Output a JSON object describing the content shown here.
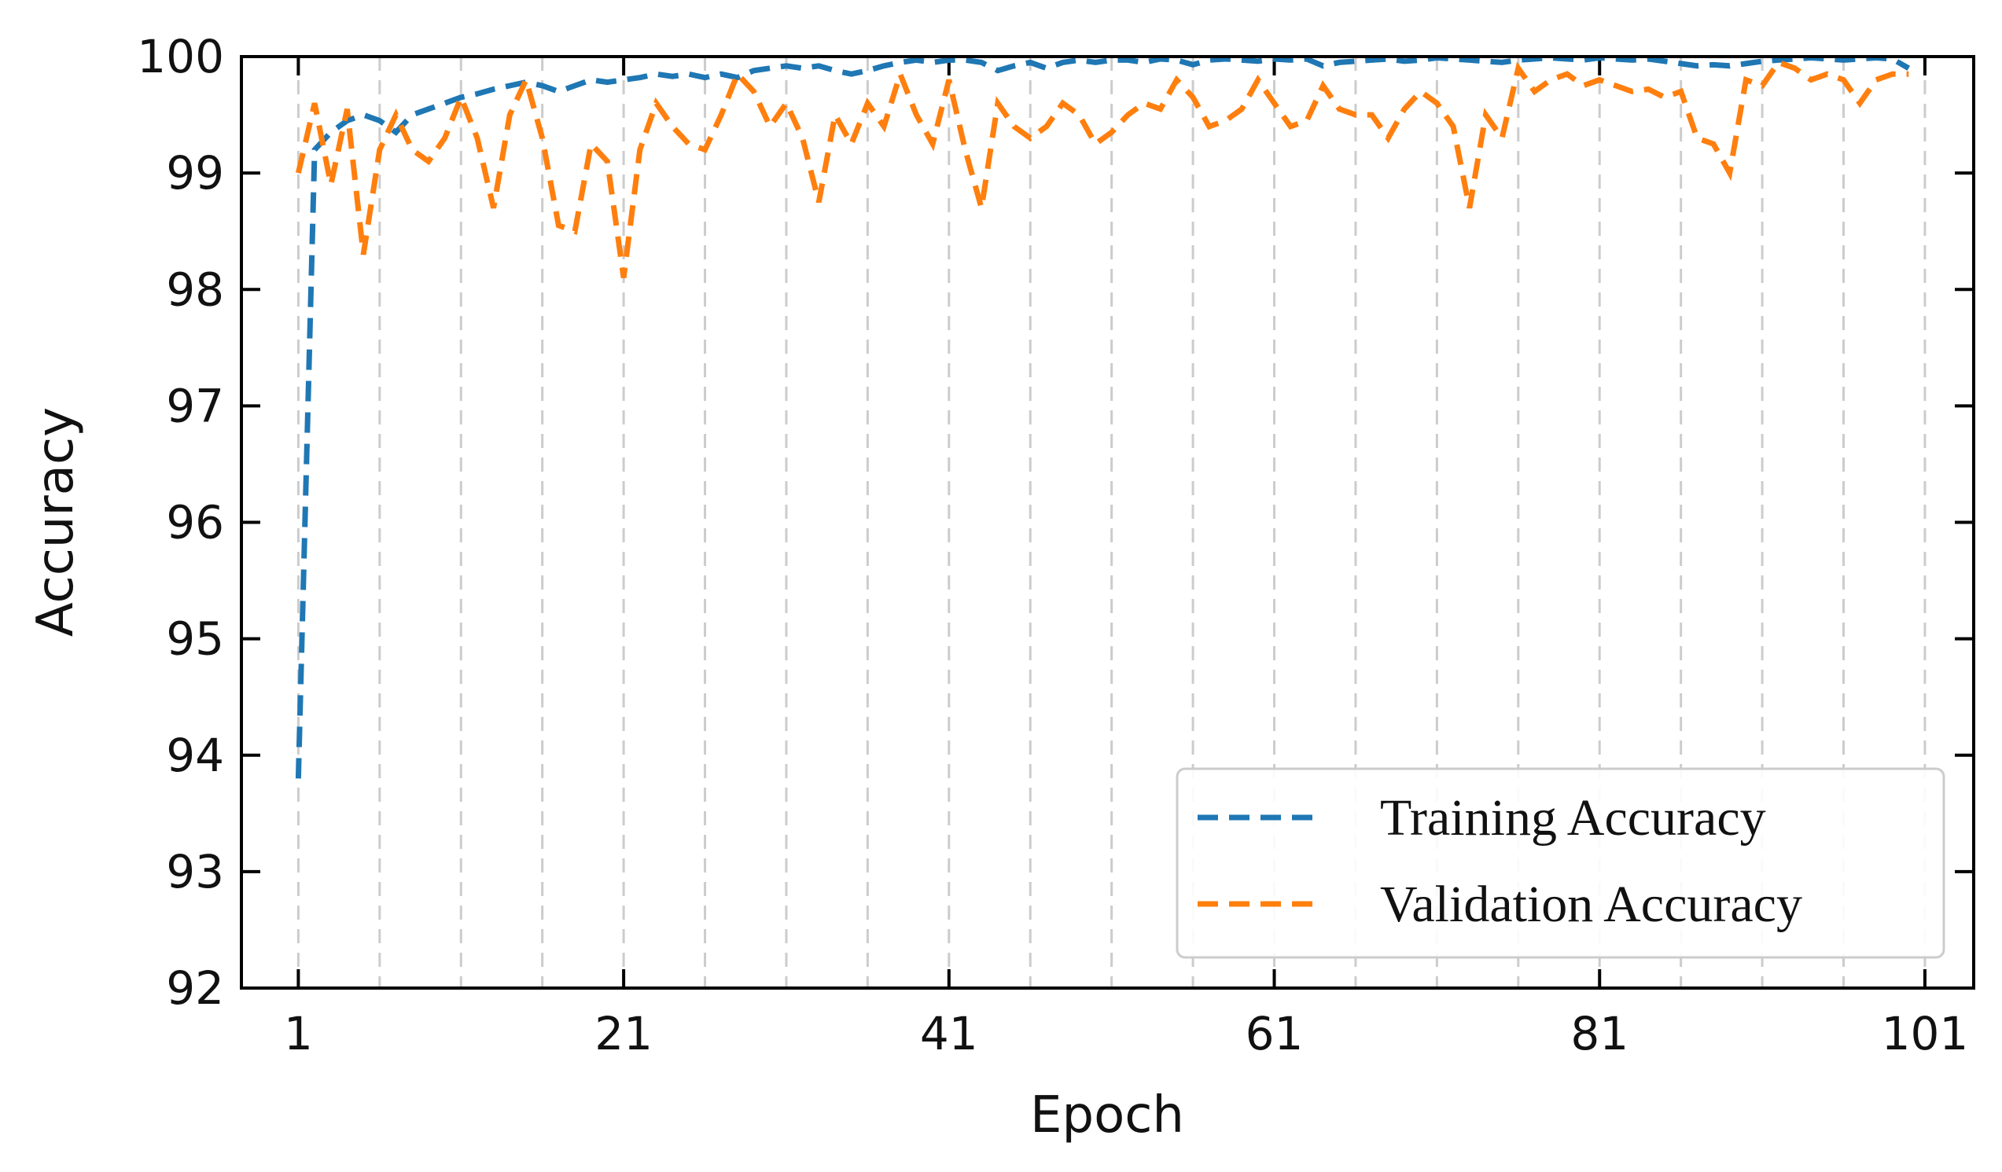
{
  "chart_data": {
    "type": "line",
    "title": "",
    "xlabel": "Epoch",
    "ylabel": "Accuracy",
    "xlim": [
      -2.5,
      104
    ],
    "ylim": [
      92,
      100
    ],
    "xticks": [
      1,
      21,
      41,
      61,
      81,
      101
    ],
    "xtick_labels": [
      "1",
      "21",
      "41",
      "61",
      "81",
      "101"
    ],
    "yticks": [
      92,
      93,
      94,
      95,
      96,
      97,
      98,
      99,
      100
    ],
    "ytick_labels": [
      "92",
      "93",
      "94",
      "95",
      "96",
      "97",
      "98",
      "99",
      "100"
    ],
    "vgrid_epochs": [
      1,
      6,
      11,
      16,
      21,
      26,
      31,
      36,
      41,
      46,
      51,
      56,
      61,
      66,
      71,
      76,
      81,
      86,
      91,
      96,
      101
    ],
    "grid_style": "vertical dashed",
    "legend_position": "lower-right",
    "colors": {
      "training": "#1f77b4",
      "validation": "#ff7f0e",
      "axes": "#000000",
      "grid": "#cccccc"
    },
    "series": [
      {
        "name": "Training Accuracy",
        "key": "training",
        "x": [
          1,
          2,
          3,
          4,
          5,
          6,
          7,
          8,
          9,
          10,
          11,
          12,
          13,
          14,
          15,
          16,
          17,
          18,
          19,
          20,
          21,
          22,
          23,
          24,
          25,
          26,
          27,
          28,
          29,
          30,
          31,
          32,
          33,
          34,
          35,
          36,
          37,
          38,
          39,
          40,
          41,
          42,
          43,
          44,
          45,
          46,
          47,
          48,
          49,
          50,
          51,
          52,
          53,
          54,
          55,
          56,
          57,
          58,
          59,
          60,
          61,
          62,
          63,
          64,
          65,
          66,
          67,
          68,
          69,
          70,
          71,
          72,
          73,
          74,
          75,
          76,
          77,
          78,
          79,
          80,
          81,
          82,
          83,
          84,
          85,
          86,
          87,
          88,
          89,
          90,
          91,
          92,
          93,
          94,
          95,
          96,
          97,
          98,
          99,
          100
        ],
        "values": [
          93.8,
          99.2,
          99.35,
          99.45,
          99.5,
          99.45,
          99.35,
          99.5,
          99.55,
          99.6,
          99.65,
          99.68,
          99.72,
          99.75,
          99.78,
          99.75,
          99.7,
          99.75,
          99.8,
          99.78,
          99.8,
          99.82,
          99.85,
          99.83,
          99.85,
          99.82,
          99.85,
          99.82,
          99.88,
          99.9,
          99.92,
          99.9,
          99.92,
          99.88,
          99.85,
          99.88,
          99.92,
          99.95,
          99.97,
          99.95,
          99.97,
          99.97,
          99.95,
          99.88,
          99.92,
          99.95,
          99.9,
          99.95,
          99.97,
          99.95,
          99.97,
          99.97,
          99.95,
          99.98,
          99.97,
          99.93,
          99.97,
          99.98,
          99.97,
          99.96,
          99.98,
          99.97,
          99.98,
          99.92,
          99.95,
          99.96,
          99.97,
          99.98,
          99.96,
          99.97,
          99.99,
          99.98,
          99.97,
          99.96,
          99.95,
          99.97,
          99.98,
          99.99,
          99.98,
          99.97,
          99.99,
          99.98,
          99.97,
          99.98,
          99.96,
          99.94,
          99.92,
          99.93,
          99.92,
          99.94,
          99.96,
          99.97,
          99.98,
          99.99,
          99.98,
          99.97,
          99.98,
          99.99,
          99.98,
          99.9
        ]
      },
      {
        "name": "Validation Accuracy",
        "key": "validation",
        "x": [
          1,
          2,
          3,
          4,
          5,
          6,
          7,
          8,
          9,
          10,
          11,
          12,
          13,
          14,
          15,
          16,
          17,
          18,
          19,
          20,
          21,
          22,
          23,
          24,
          25,
          26,
          27,
          28,
          29,
          30,
          31,
          32,
          33,
          34,
          35,
          36,
          37,
          38,
          39,
          40,
          41,
          42,
          43,
          44,
          45,
          46,
          47,
          48,
          49,
          50,
          51,
          52,
          53,
          54,
          55,
          56,
          57,
          58,
          59,
          60,
          61,
          62,
          63,
          64,
          65,
          66,
          67,
          68,
          69,
          70,
          71,
          72,
          73,
          74,
          75,
          76,
          77,
          78,
          79,
          80,
          81,
          82,
          83,
          84,
          85,
          86,
          87,
          88,
          89,
          90,
          91,
          92,
          93,
          94,
          95,
          96,
          97,
          98,
          99,
          100
        ],
        "values": [
          99.0,
          99.6,
          98.9,
          99.55,
          98.3,
          99.2,
          99.5,
          99.2,
          99.1,
          99.3,
          99.65,
          99.3,
          98.7,
          99.5,
          99.8,
          99.3,
          98.55,
          98.5,
          99.25,
          99.1,
          98.1,
          99.2,
          99.6,
          99.4,
          99.25,
          99.2,
          99.5,
          99.85,
          99.7,
          99.4,
          99.6,
          99.3,
          98.75,
          99.5,
          99.25,
          99.6,
          99.4,
          99.85,
          99.5,
          99.25,
          99.8,
          99.2,
          98.7,
          99.6,
          99.4,
          99.3,
          99.4,
          99.6,
          99.5,
          99.25,
          99.35,
          99.5,
          99.6,
          99.55,
          99.8,
          99.65,
          99.4,
          99.45,
          99.55,
          99.8,
          99.6,
          99.4,
          99.45,
          99.75,
          99.55,
          99.5,
          99.5,
          99.3,
          99.55,
          99.7,
          99.6,
          99.4,
          98.7,
          99.5,
          99.3,
          99.9,
          99.7,
          99.8,
          99.85,
          99.75,
          99.8,
          99.75,
          99.7,
          99.72,
          99.65,
          99.7,
          99.3,
          99.25,
          99.0,
          99.8,
          99.75,
          99.95,
          99.9,
          99.8,
          99.85,
          99.8,
          99.6,
          99.8,
          99.85,
          99.85
        ]
      }
    ]
  }
}
